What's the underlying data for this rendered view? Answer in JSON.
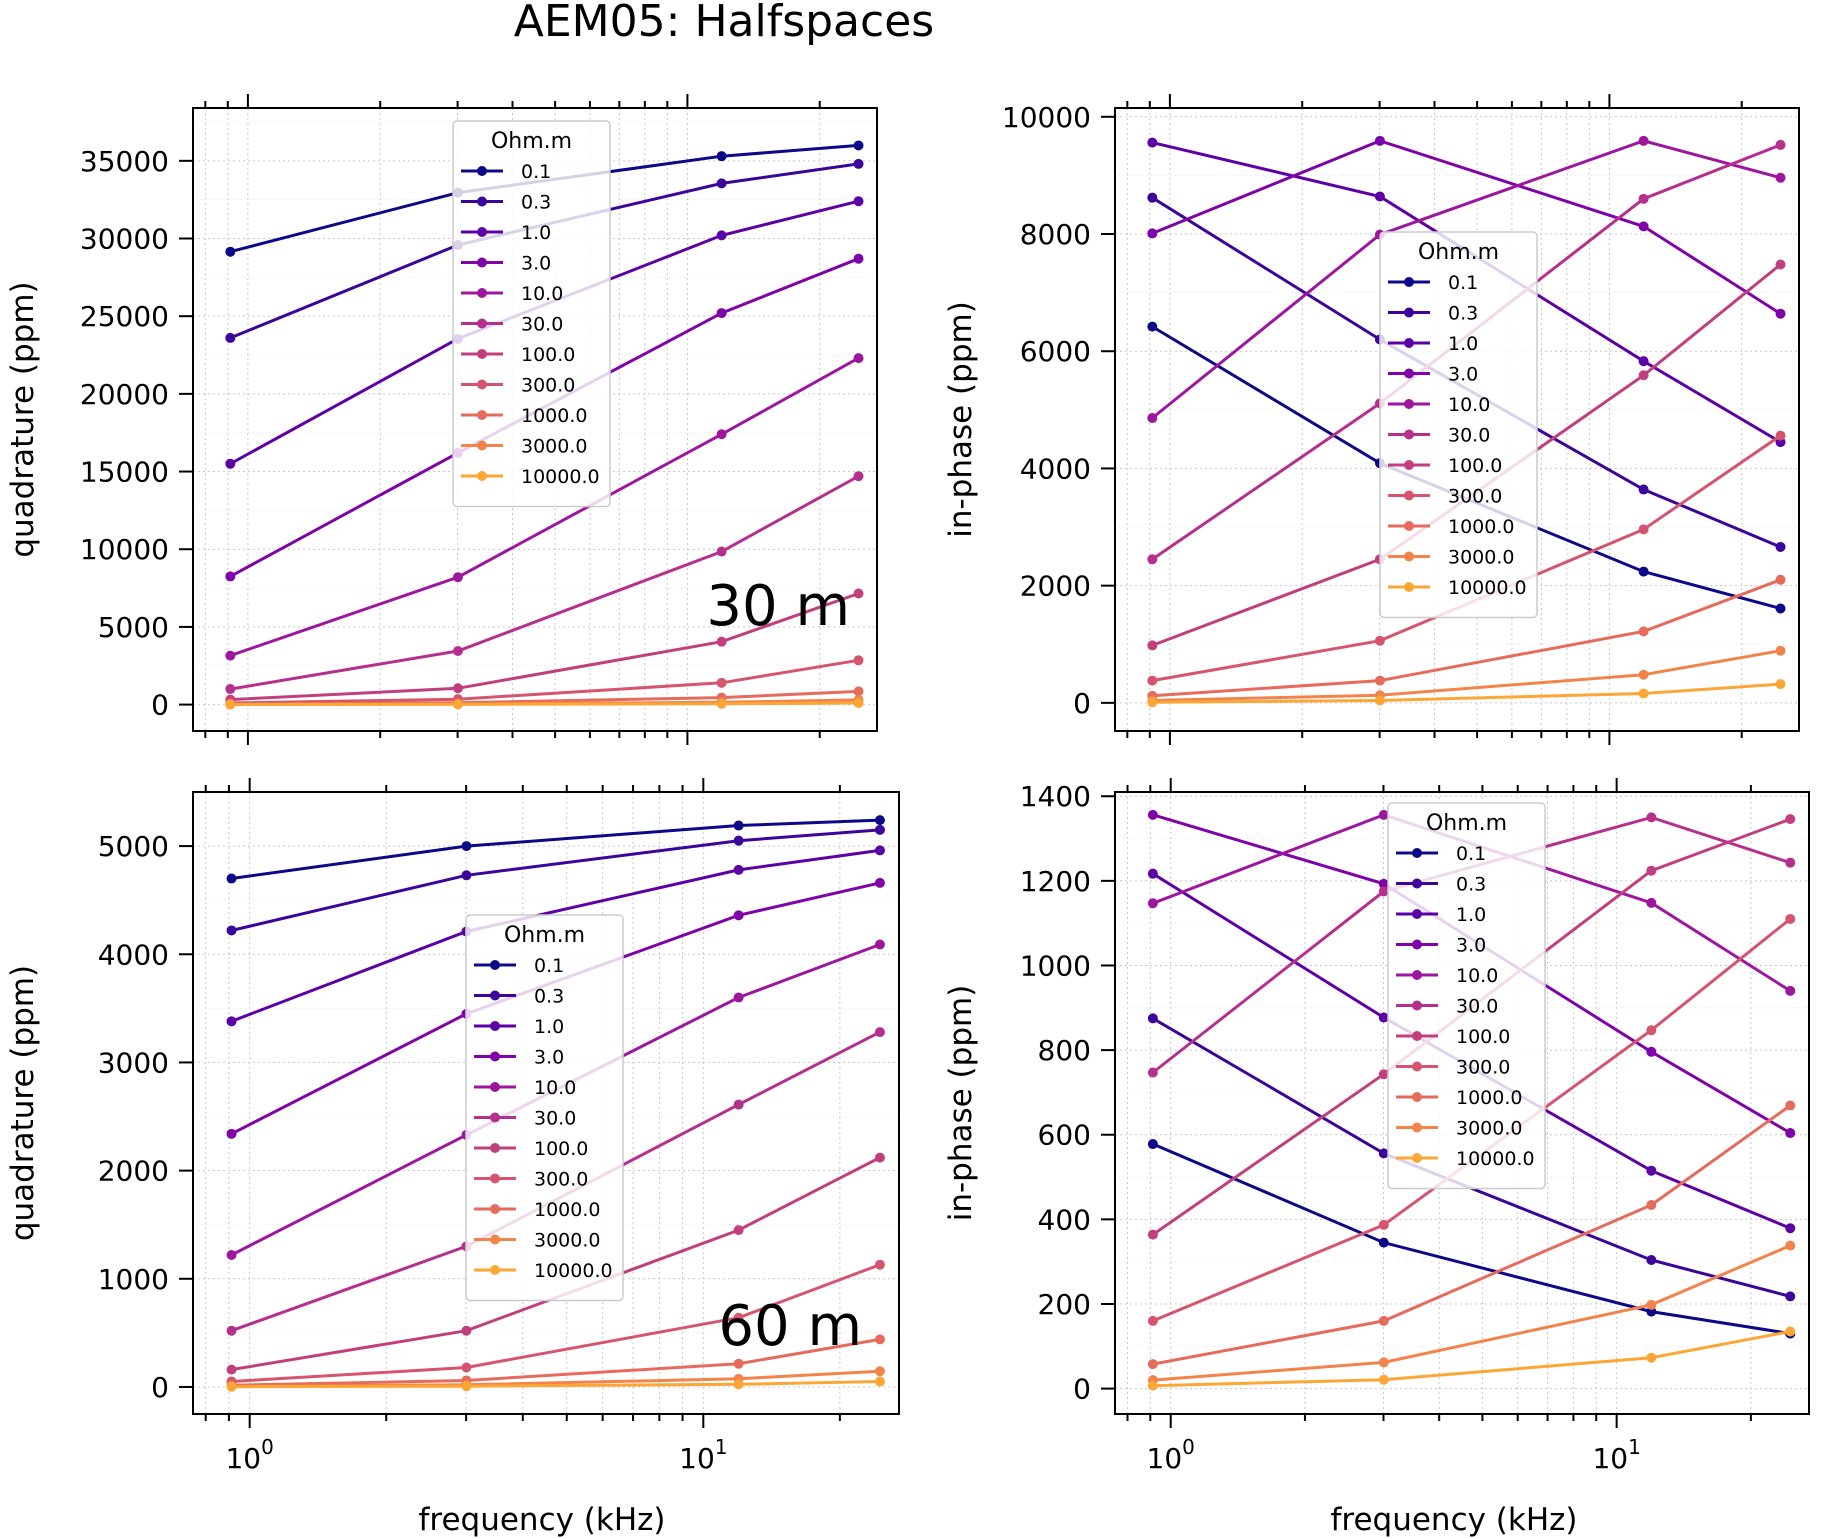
{
  "figure_title": "AEM05: Halfspaces",
  "chart_data": [
    {
      "type": "line",
      "panel": "top-left",
      "xscale": "log",
      "x": [
        0.912,
        3.005,
        11.962,
        24.51
      ],
      "xlim": [
        0.75,
        27
      ],
      "ylim": [
        -1700,
        38400
      ],
      "xlabel": "",
      "ylabel": "quadrature (ppm)",
      "yticks": [
        "0",
        "5000",
        "10000",
        "15000",
        "20000",
        "25000",
        "30000",
        "35000"
      ],
      "ytick_values": [
        0,
        5000,
        10000,
        15000,
        20000,
        25000,
        30000,
        35000
      ],
      "xticks": [],
      "annotation": "30 m",
      "grid": true,
      "legend_placement": "upper-center",
      "legend_title": "Ohm.m",
      "series": [
        {
          "name": "0.1",
          "color": "#0d0887",
          "values": [
            29150,
            32950,
            35300,
            35990
          ]
        },
        {
          "name": "0.3",
          "color": "#3b049a",
          "values": [
            23600,
            29580,
            33550,
            34800
          ]
        },
        {
          "name": "1.0",
          "color": "#5c01a6",
          "values": [
            15500,
            23550,
            30200,
            32400
          ]
        },
        {
          "name": "3.0",
          "color": "#7e03a8",
          "values": [
            8250,
            16200,
            25200,
            28700
          ]
        },
        {
          "name": "10.0",
          "color": "#9c179e",
          "values": [
            3150,
            8200,
            17400,
            22300
          ]
        },
        {
          "name": "30.0",
          "color": "#b52f8c",
          "values": [
            1000,
            3450,
            9850,
            14700
          ]
        },
        {
          "name": "100.0",
          "color": "#c13f7e",
          "values": [
            320,
            1050,
            4050,
            7150
          ]
        },
        {
          "name": "300.0",
          "color": "#d5546e",
          "values": [
            105,
            350,
            1400,
            2850
          ]
        },
        {
          "name": "1000.0",
          "color": "#e56b5d",
          "values": [
            35,
            115,
            450,
            850
          ]
        },
        {
          "name": "3000.0",
          "color": "#f2844b",
          "values": [
            12,
            40,
            150,
            300
          ]
        },
        {
          "name": "10000.0",
          "color": "#fca636",
          "values": [
            4,
            13,
            50,
            100
          ]
        }
      ]
    },
    {
      "type": "line",
      "panel": "top-right",
      "xscale": "log",
      "x": [
        0.912,
        3.005,
        11.962,
        24.51
      ],
      "xlim": [
        0.75,
        27
      ],
      "ylim": [
        -480,
        10150
      ],
      "xlabel": "",
      "ylabel": "in-phase (ppm)",
      "yticks": [
        "0",
        "2000",
        "4000",
        "6000",
        "8000",
        "10000"
      ],
      "ytick_values": [
        0,
        2000,
        4000,
        6000,
        8000,
        10000
      ],
      "xticks": [],
      "annotation": "",
      "grid": true,
      "legend_placement": "center",
      "legend_title": "Ohm.m",
      "series": [
        {
          "name": "0.1",
          "color": "#0d0887",
          "values": [
            6420,
            4090,
            2240,
            1610
          ]
        },
        {
          "name": "0.3",
          "color": "#3b049a",
          "values": [
            8620,
            6200,
            3640,
            2660
          ]
        },
        {
          "name": "1.0",
          "color": "#5c01a6",
          "values": [
            9560,
            8640,
            5830,
            4450
          ]
        },
        {
          "name": "3.0",
          "color": "#7e03a8",
          "values": [
            8010,
            9590,
            8130,
            6640
          ]
        },
        {
          "name": "10.0",
          "color": "#9c179e",
          "values": [
            4860,
            7990,
            9590,
            8960
          ]
        },
        {
          "name": "30.0",
          "color": "#b52f8c",
          "values": [
            2450,
            5110,
            8600,
            9520
          ]
        },
        {
          "name": "100.0",
          "color": "#c13f7e",
          "values": [
            980,
            2450,
            5590,
            7480
          ]
        },
        {
          "name": "300.0",
          "color": "#d5546e",
          "values": [
            380,
            1060,
            2960,
            4560
          ]
        },
        {
          "name": "1000.0",
          "color": "#e56b5d",
          "values": [
            120,
            380,
            1220,
            2100
          ]
        },
        {
          "name": "3000.0",
          "color": "#f2844b",
          "values": [
            40,
            130,
            480,
            890
          ]
        },
        {
          "name": "10000.0",
          "color": "#fca636",
          "values": [
            12,
            40,
            160,
            320
          ]
        }
      ]
    },
    {
      "type": "line",
      "panel": "bottom-left",
      "xscale": "log",
      "x": [
        0.912,
        3.005,
        11.962,
        24.51
      ],
      "xlim": [
        0.75,
        27
      ],
      "ylim": [
        -250,
        5500
      ],
      "xlabel": "frequency (kHz)",
      "ylabel": "quadrature (ppm)",
      "yticks": [
        "0",
        "1000",
        "2000",
        "3000",
        "4000",
        "5000"
      ],
      "ytick_values": [
        0,
        1000,
        2000,
        3000,
        4000,
        5000
      ],
      "xticks": [
        "10^0",
        "10^1"
      ],
      "xtick_values": [
        1,
        10
      ],
      "annotation": "60 m",
      "grid": true,
      "legend_placement": "center",
      "legend_title": "Ohm.m",
      "series": [
        {
          "name": "0.1",
          "color": "#0d0887",
          "values": [
            4700,
            5000,
            5190,
            5240
          ]
        },
        {
          "name": "0.3",
          "color": "#3b049a",
          "values": [
            4220,
            4730,
            5050,
            5150
          ]
        },
        {
          "name": "1.0",
          "color": "#5c01a6",
          "values": [
            3380,
            4210,
            4780,
            4960
          ]
        },
        {
          "name": "3.0",
          "color": "#7e03a8",
          "values": [
            2340,
            3450,
            4360,
            4660
          ]
        },
        {
          "name": "10.0",
          "color": "#9c179e",
          "values": [
            1220,
            2330,
            3600,
            4090
          ]
        },
        {
          "name": "30.0",
          "color": "#b52f8c",
          "values": [
            520,
            1300,
            2610,
            3280
          ]
        },
        {
          "name": "100.0",
          "color": "#c13f7e",
          "values": [
            160,
            520,
            1450,
            2120
          ]
        },
        {
          "name": "300.0",
          "color": "#d5546e",
          "values": [
            50,
            180,
            640,
            1130
          ]
        },
        {
          "name": "1000.0",
          "color": "#e56b5d",
          "values": [
            16,
            60,
            215,
            440
          ]
        },
        {
          "name": "3000.0",
          "color": "#f2844b",
          "values": [
            5,
            20,
            75,
            145
          ]
        },
        {
          "name": "10000.0",
          "color": "#fca636",
          "values": [
            2,
            7,
            25,
            50
          ]
        }
      ]
    },
    {
      "type": "line",
      "panel": "bottom-right",
      "xscale": "log",
      "x": [
        0.912,
        3.005,
        11.962,
        24.51
      ],
      "xlim": [
        0.75,
        27
      ],
      "ylim": [
        -60,
        1410
      ],
      "xlabel": "frequency (kHz)",
      "ylabel": "in-phase (ppm)",
      "yticks": [
        "0",
        "200",
        "400",
        "600",
        "800",
        "1000",
        "1200",
        "1400"
      ],
      "ytick_values": [
        0,
        200,
        400,
        600,
        800,
        1000,
        1200,
        1400
      ],
      "xticks": [
        "10^0",
        "10^1"
      ],
      "xtick_values": [
        1,
        10
      ],
      "annotation": "",
      "grid": true,
      "legend_placement": "upper-center",
      "legend_title": "Ohm.m",
      "series": [
        {
          "name": "0.1",
          "color": "#0d0887",
          "values": [
            578,
            345,
            182,
            130
          ]
        },
        {
          "name": "0.3",
          "color": "#3b049a",
          "values": [
            875,
            556,
            304,
            218
          ]
        },
        {
          "name": "1.0",
          "color": "#5c01a6",
          "values": [
            1217,
            877,
            515,
            379
          ]
        },
        {
          "name": "3.0",
          "color": "#7e03a8",
          "values": [
            1356,
            1193,
            796,
            604
          ]
        },
        {
          "name": "10.0",
          "color": "#9c179e",
          "values": [
            1147,
            1356,
            1148,
            940
          ]
        },
        {
          "name": "30.0",
          "color": "#b52f8c",
          "values": [
            747,
            1175,
            1350,
            1243
          ]
        },
        {
          "name": "100.0",
          "color": "#c13f7e",
          "values": [
            364,
            743,
            1224,
            1346
          ]
        },
        {
          "name": "300.0",
          "color": "#d5546e",
          "values": [
            160,
            387,
            847,
            1110
          ]
        },
        {
          "name": "1000.0",
          "color": "#e56b5d",
          "values": [
            58,
            160,
            434,
            669
          ]
        },
        {
          "name": "3000.0",
          "color": "#f2844b",
          "values": [
            20,
            62,
            198,
            338
          ]
        },
        {
          "name": "10000.0",
          "color": "#fca636",
          "values": [
            7,
            21,
            73,
            135
          ]
        }
      ]
    }
  ]
}
